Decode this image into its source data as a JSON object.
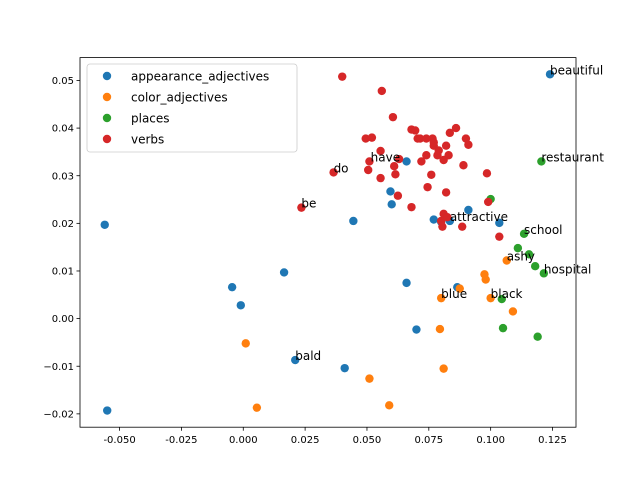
{
  "chart_data": {
    "type": "scatter",
    "xlim": [
      -0.066,
      0.1345
    ],
    "ylim": [
      -0.0228,
      0.0548
    ],
    "xticks": [
      "-0.050",
      "-0.025",
      "0.000",
      "0.025",
      "0.050",
      "0.075",
      "0.100",
      "0.125"
    ],
    "xtick_values": [
      -0.05,
      -0.025,
      0.0,
      0.025,
      0.05,
      0.075,
      0.1,
      0.125
    ],
    "yticks": [
      "−0.02",
      "−0.01",
      "0.00",
      "0.01",
      "0.02",
      "0.03",
      "0.04",
      "0.05"
    ],
    "ytick_values": [
      -0.02,
      -0.01,
      0.0,
      0.01,
      0.02,
      0.03,
      0.04,
      0.05
    ],
    "grid": false,
    "legend_position": "top-left",
    "series": [
      {
        "name": "appearance_adjectives",
        "color": "#1f77b4",
        "points": [
          [
            -0.056,
            0.0197
          ],
          [
            -0.055,
            -0.0193
          ],
          [
            -0.0045,
            0.0066
          ],
          [
            -0.001,
            0.0028
          ],
          [
            0.0165,
            0.0097
          ],
          [
            0.021,
            -0.0087
          ],
          [
            0.041,
            -0.0104
          ],
          [
            0.0445,
            0.0205
          ],
          [
            0.0595,
            0.0267
          ],
          [
            0.06,
            0.024
          ],
          [
            0.066,
            0.033
          ],
          [
            0.066,
            0.0075
          ],
          [
            0.07,
            -0.0023
          ],
          [
            0.077,
            0.0208
          ],
          [
            0.08,
            0.0203
          ],
          [
            0.0835,
            0.0205
          ],
          [
            0.0865,
            0.0066
          ],
          [
            0.091,
            0.0228
          ],
          [
            0.1035,
            0.0201
          ],
          [
            0.124,
            0.0513
          ]
        ]
      },
      {
        "name": "color_adjectives",
        "color": "#ff7f0e",
        "points": [
          [
            0.001,
            -0.0052
          ],
          [
            0.0055,
            -0.0187
          ],
          [
            0.051,
            -0.0126
          ],
          [
            0.059,
            -0.0182
          ],
          [
            0.0795,
            -0.0022
          ],
          [
            0.08,
            0.0043
          ],
          [
            0.081,
            -0.0105
          ],
          [
            0.0875,
            0.0063
          ],
          [
            0.0975,
            0.0093
          ],
          [
            0.098,
            0.0082
          ],
          [
            0.1,
            0.0043
          ],
          [
            0.1065,
            0.0122
          ],
          [
            0.109,
            0.0015
          ]
        ]
      },
      {
        "name": "places",
        "color": "#2ca02c",
        "points": [
          [
            0.1,
            0.0251
          ],
          [
            0.1045,
            0.0041
          ],
          [
            0.105,
            -0.002
          ],
          [
            0.111,
            0.0148
          ],
          [
            0.1135,
            0.0178
          ],
          [
            0.1155,
            0.0135
          ],
          [
            0.118,
            0.011
          ],
          [
            0.119,
            -0.0038
          ],
          [
            0.1205,
            0.033
          ],
          [
            0.1215,
            0.0095
          ]
        ]
      },
      {
        "name": "verbs",
        "color": "#d62728",
        "points": [
          [
            0.0235,
            0.0233
          ],
          [
            0.0365,
            0.0307
          ],
          [
            0.04,
            0.0508
          ],
          [
            0.0495,
            0.0378
          ],
          [
            0.0505,
            0.0312
          ],
          [
            0.051,
            0.033
          ],
          [
            0.052,
            0.038
          ],
          [
            0.0555,
            0.0295
          ],
          [
            0.0555,
            0.0352
          ],
          [
            0.056,
            0.0478
          ],
          [
            0.0605,
            0.0423
          ],
          [
            0.061,
            0.032
          ],
          [
            0.0615,
            0.0303
          ],
          [
            0.0625,
            0.0258
          ],
          [
            0.063,
            0.0335
          ],
          [
            0.068,
            0.0397
          ],
          [
            0.068,
            0.0234
          ],
          [
            0.0695,
            0.0395
          ],
          [
            0.0705,
            0.0378
          ],
          [
            0.0715,
            0.0378
          ],
          [
            0.072,
            0.033
          ],
          [
            0.074,
            0.0378
          ],
          [
            0.074,
            0.0343
          ],
          [
            0.0745,
            0.0276
          ],
          [
            0.076,
            0.0302
          ],
          [
            0.0765,
            0.0378
          ],
          [
            0.077,
            0.0363
          ],
          [
            0.077,
            0.037
          ],
          [
            0.0785,
            0.0343
          ],
          [
            0.079,
            0.0353
          ],
          [
            0.08,
            0.0205
          ],
          [
            0.0805,
            0.0193
          ],
          [
            0.081,
            0.022
          ],
          [
            0.081,
            0.0333
          ],
          [
            0.082,
            0.0363
          ],
          [
            0.082,
            0.0265
          ],
          [
            0.0825,
            0.0213
          ],
          [
            0.083,
            0.0343
          ],
          [
            0.0835,
            0.039
          ],
          [
            0.086,
            0.04
          ],
          [
            0.0885,
            0.0193
          ],
          [
            0.089,
            0.0322
          ],
          [
            0.09,
            0.0378
          ],
          [
            0.091,
            0.0365
          ],
          [
            0.0985,
            0.0305
          ],
          [
            0.099,
            0.0245
          ],
          [
            0.1035,
            0.0172
          ]
        ]
      }
    ],
    "annotations": [
      {
        "text": "beautiful",
        "x": 0.124,
        "y": 0.0513
      },
      {
        "text": "restaurant",
        "x": 0.1205,
        "y": 0.033
      },
      {
        "text": "have",
        "x": 0.0515,
        "y": 0.033
      },
      {
        "text": "do",
        "x": 0.0365,
        "y": 0.0307
      },
      {
        "text": "be",
        "x": 0.0235,
        "y": 0.0233
      },
      {
        "text": "attractive",
        "x": 0.0835,
        "y": 0.0205
      },
      {
        "text": "school",
        "x": 0.1135,
        "y": 0.0178
      },
      {
        "text": "ashy",
        "x": 0.1065,
        "y": 0.0122
      },
      {
        "text": "hospital",
        "x": 0.1215,
        "y": 0.0095
      },
      {
        "text": "blue",
        "x": 0.08,
        "y": 0.0043
      },
      {
        "text": "black",
        "x": 0.1,
        "y": 0.0043
      },
      {
        "text": "bald",
        "x": 0.021,
        "y": -0.0087
      }
    ]
  }
}
